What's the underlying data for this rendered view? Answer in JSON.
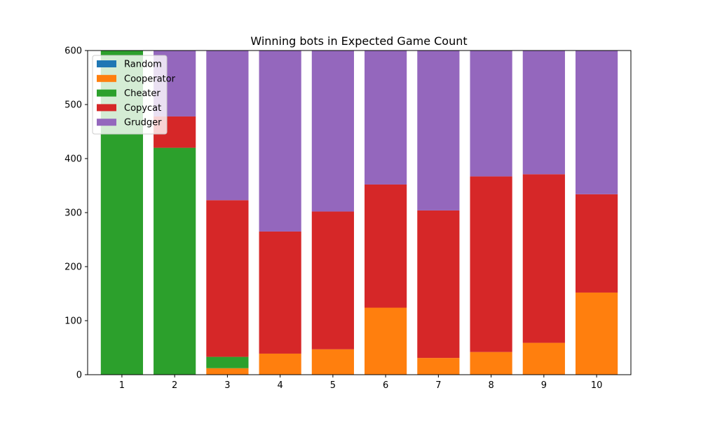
{
  "chart_data": {
    "type": "bar",
    "stacked": true,
    "title": "Winning bots in Expected Game Count",
    "xlabel": "",
    "ylabel": "",
    "categories": [
      "1",
      "2",
      "3",
      "4",
      "5",
      "6",
      "7",
      "8",
      "9",
      "10"
    ],
    "ylim": [
      0,
      600
    ],
    "yticks": [
      0,
      100,
      200,
      300,
      400,
      500,
      600
    ],
    "grid": false,
    "legend_position": "top-left",
    "series": [
      {
        "name": "Random",
        "color": "#1f77b4",
        "values": [
          0,
          0,
          0,
          0,
          0,
          0,
          0,
          0,
          0,
          0
        ]
      },
      {
        "name": "Cooperator",
        "color": "#ff7f0e",
        "values": [
          0,
          0,
          12,
          39,
          47,
          124,
          31,
          42,
          59,
          152
        ]
      },
      {
        "name": "Cheater",
        "color": "#2ca02c",
        "values": [
          600,
          420,
          21,
          0,
          0,
          0,
          0,
          0,
          0,
          0
        ]
      },
      {
        "name": "Copycat",
        "color": "#d62728",
        "values": [
          0,
          58,
          290,
          226,
          255,
          228,
          273,
          325,
          312,
          182
        ]
      },
      {
        "name": "Grudger",
        "color": "#9467bd",
        "values": [
          0,
          122,
          277,
          335,
          298,
          248,
          296,
          233,
          229,
          266
        ]
      }
    ]
  }
}
